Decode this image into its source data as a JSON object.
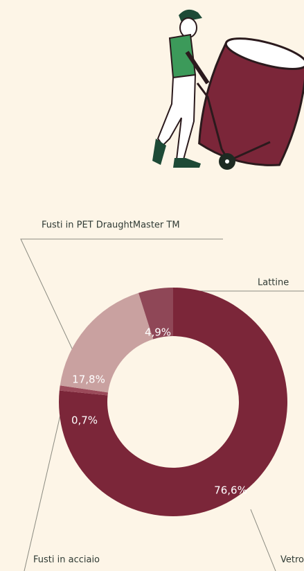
{
  "chart_data": {
    "type": "pie",
    "categories": [
      "Vetro",
      "Fusti in acciaio",
      "Fusti in PET DraughtMaster TM",
      "Lattine"
    ],
    "values": [
      76.6,
      0.7,
      17.8,
      4.9
    ],
    "value_labels": [
      "76,6%",
      "0,7%",
      "17,8%",
      "4,9%"
    ],
    "colors": [
      "#7b2639",
      "#9b4a5a",
      "#c9a1a0",
      "#8f4757"
    ]
  }
}
